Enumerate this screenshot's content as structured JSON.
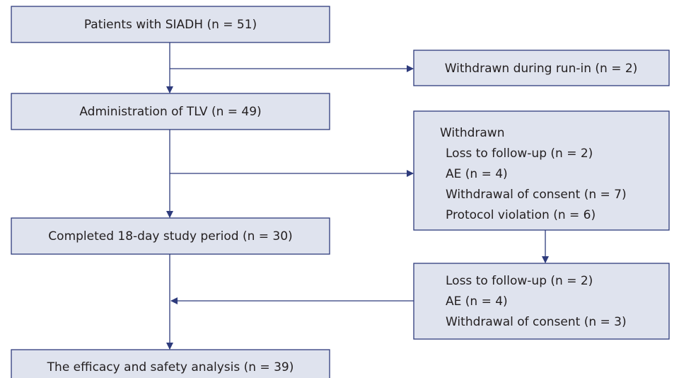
{
  "nodes": [
    {
      "label": "Patients with SIADH (n = 51)"
    },
    {
      "label": "Withdrawn during run-in (n = 2)"
    },
    {
      "label": "Administration of TLV (n = 49)"
    },
    {
      "label": "Withdrawn",
      "items": [
        "Loss to follow-up (n = 2)",
        "AE (n = 4)",
        "Withdrawal of consent (n = 7)",
        "Protocol violation (n = 6)"
      ]
    },
    {
      "label": "Completed 18-day study period (n = 30)"
    },
    {
      "items": [
        "Loss to follow-up (n = 2)",
        "AE (n = 4)",
        "Withdrawal of consent (n = 3)"
      ]
    },
    {
      "label": "The efficacy and safety analysis (n = 39)"
    }
  ]
}
